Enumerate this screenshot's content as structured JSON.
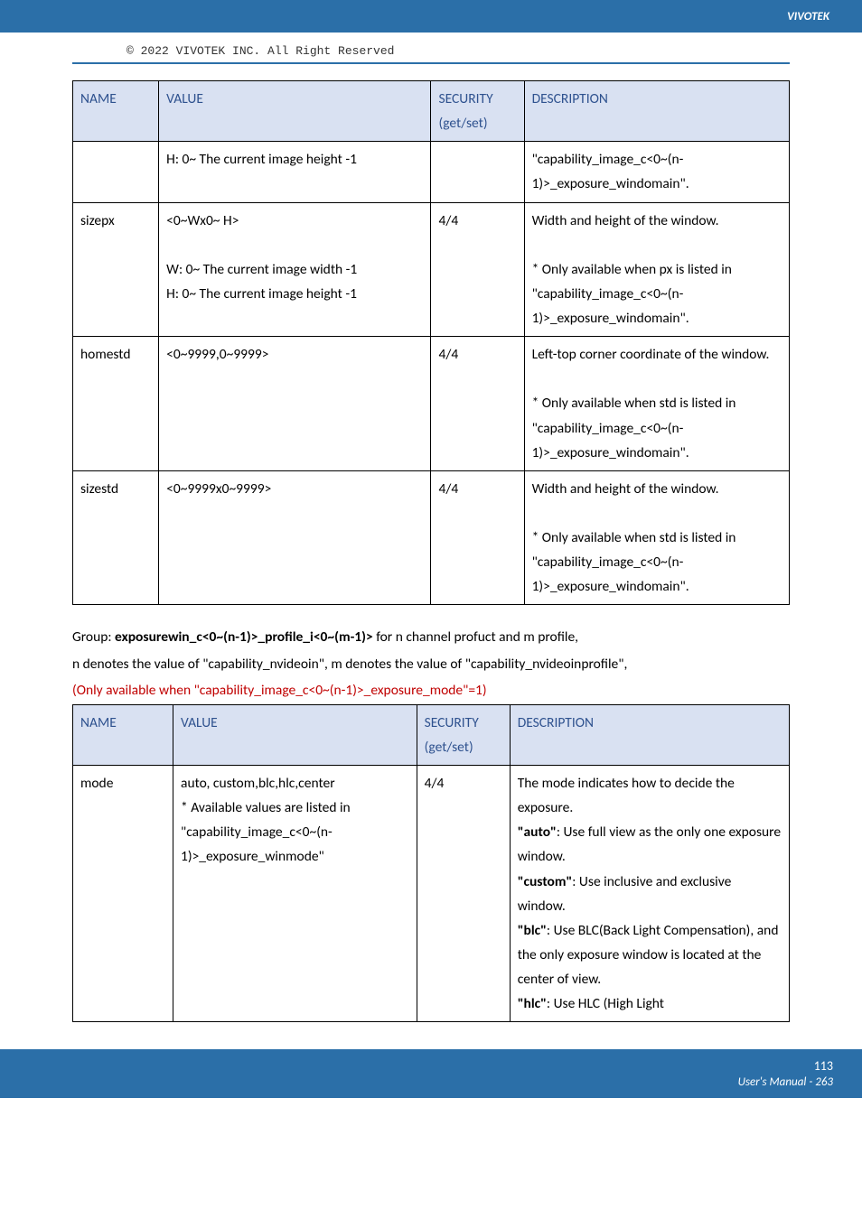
{
  "brand": "VIVOTEK",
  "copyright": "© 2022 VIVOTEK INC. All Right Reserved",
  "table1": {
    "headers": {
      "name": "NAME",
      "value": "VALUE",
      "sec": "SECURITY (get/set)",
      "desc": "DESCRIPTION"
    },
    "rows": [
      {
        "name": "",
        "value": "H: 0~ The current image height -1",
        "sec": "",
        "desc": "\"capability_image_c<0~(n-1)>_exposure_windomain\"."
      },
      {
        "name": "sizepx",
        "value": "<0~Wx0~ H>\n\nW: 0~ The current image width -1\nH: 0~ The current image height -1",
        "sec": "4/4",
        "desc": "Width and height of the window.\n\n* Only available when px is listed in \"capability_image_c<0~(n-1)>_exposure_windomain\"."
      },
      {
        "name": "homestd",
        "value": "<0~9999,0~9999>",
        "sec": "4/4",
        "desc": "Left-top corner coordinate of the window.\n\n* Only available when std is listed in \"capability_image_c<0~(n-1)>_exposure_windomain\"."
      },
      {
        "name": "sizestd",
        "value": "<0~9999x0~9999>",
        "sec": "4/4",
        "desc": "Width and height of the window.\n\n* Only available when std is listed in \"capability_image_c<0~(n-1)>_exposure_windomain\"."
      }
    ]
  },
  "group_text": {
    "line1_a": "Group: ",
    "line1_b": "exposurewin_c<0~(n-1)>_profile_i<0~(m-1)>",
    "line1_c": " for n channel profuct and m profile,",
    "line2": "n denotes the value of \"capability_nvideoin\", m denotes the value of \"capability_nvideoinprofile\",",
    "line3": "(Only available when \"capability_image_c<0~(n-1)>_exposure_mode\"=1)"
  },
  "table2": {
    "headers": {
      "name": "NAME",
      "value": "VALUE",
      "sec": "SECURITY (get/set)",
      "desc": "DESCRIPTION"
    },
    "row": {
      "name": "mode",
      "value": "auto, custom,blc,hlc,center\n* Available values are listed in \"capability_image_c<0~(n-1)>_exposure_winmode\"",
      "sec": "4/4",
      "desc_lines": {
        "l1": "The mode indicates how to decide the exposure.",
        "l2a": "\"auto\"",
        "l2b": ": Use full view as the only one exposure window.",
        "l3a": "\"custom\"",
        "l3b": ": Use inclusive and exclusive window.",
        "l4a": "\"blc\"",
        "l4b": ": Use BLC(Back Light Compensation), and the only exposure window is located at the center of view.",
        "l5a": "\"hlc\"",
        "l5b": ": Use HLC (High Light"
      }
    }
  },
  "footer": {
    "page": "113",
    "manual": "User's Manual - 263"
  }
}
